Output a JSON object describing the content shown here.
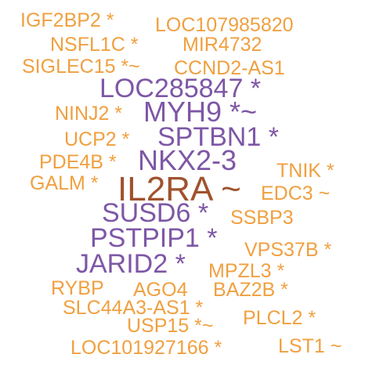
{
  "colors": {
    "orange": "#F0A040",
    "purple": "#7E57A6",
    "brown": "#A0522D"
  },
  "words": [
    "IGF2BP2 *",
    "LOC107985820",
    "NSFL1C *",
    "MIR4732",
    "SIGLEC15 *~",
    "CCND2-AS1",
    "LOC285847 *",
    "NINJ2 *",
    "MYH9 *~",
    "UCP2 *",
    "SPTBN1 *",
    "PDE4B *",
    "NKX2-3",
    "TNIK *",
    "GALM *",
    "IL2RA ~",
    "EDC3 ~",
    "SUSD6 *",
    "SSBP3",
    "PSTPIP1 *",
    "VPS37B *",
    "JARID2 *",
    "MPZL3 *",
    "RYBP",
    "AGO4",
    "BAZ2B *",
    "SLC44A3-AS1 *",
    "USP15 *~",
    "PLCL2 *",
    "LOC101927166 *",
    "LST1 ~"
  ]
}
